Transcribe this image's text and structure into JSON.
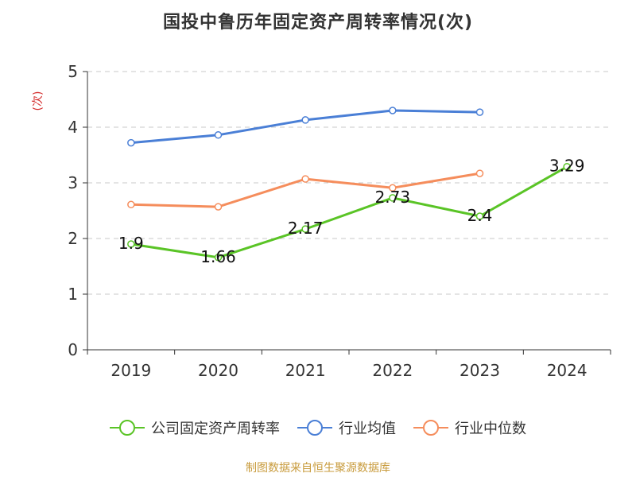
{
  "chart_data": {
    "type": "line",
    "title": "国投中鲁历年固定资产周转率情况(次)",
    "ylabel": "(次)",
    "categories": [
      "2019",
      "2020",
      "2021",
      "2022",
      "2023",
      "2024"
    ],
    "ylim": [
      0,
      5
    ],
    "yticks": [
      0,
      1,
      2,
      3,
      4,
      5
    ],
    "grid": true,
    "legend_position": "bottom",
    "series": [
      {
        "name": "公司固定资产周转率",
        "color": "#5ac426",
        "values": [
          1.9,
          1.66,
          2.17,
          2.73,
          2.4,
          3.29
        ],
        "labels": [
          "1.9",
          "1.66",
          "2.17",
          "2.73",
          "2.4",
          "3.29"
        ]
      },
      {
        "name": "行业均值",
        "color": "#4a7fd6",
        "values": [
          3.72,
          3.86,
          4.13,
          4.3,
          4.27,
          null
        ]
      },
      {
        "name": "行业中位数",
        "color": "#f58d5c",
        "values": [
          2.61,
          2.57,
          3.07,
          2.91,
          3.17,
          null
        ]
      }
    ]
  },
  "source": "制图数据来自恒生聚源数据库"
}
